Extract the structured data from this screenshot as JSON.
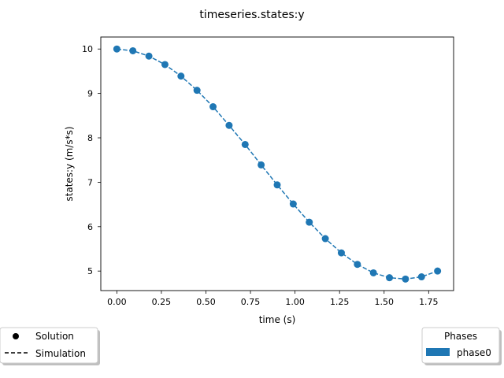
{
  "chart_data": {
    "type": "line",
    "title": "timeseries.states:y",
    "xlabel": "time (s)",
    "ylabel": "states:y (m/s*s)",
    "xlim": [
      -0.09,
      1.89
    ],
    "ylim": [
      4.56,
      10.27
    ],
    "xticks": [
      "0.00",
      "0.25",
      "0.50",
      "0.75",
      "1.00",
      "1.25",
      "1.50",
      "1.75"
    ],
    "yticks": [
      "5",
      "6",
      "7",
      "8",
      "9",
      "10"
    ],
    "grid": false,
    "color": "#1f77b4",
    "series": [
      {
        "kind": "scatter",
        "x": [
          0.0,
          0.09,
          0.18,
          0.27,
          0.36,
          0.45,
          0.54,
          0.63,
          0.72,
          0.81,
          0.9,
          0.99,
          1.08,
          1.17,
          1.26,
          1.35,
          1.44,
          1.53,
          1.62,
          1.71,
          1.8
        ],
        "y": [
          10.0,
          9.96,
          9.84,
          9.65,
          9.39,
          9.07,
          8.7,
          8.28,
          7.85,
          7.39,
          6.94,
          6.51,
          6.1,
          5.73,
          5.41,
          5.15,
          4.96,
          4.85,
          4.82,
          4.87,
          5.0
        ]
      },
      {
        "kind": "line-dashed",
        "x": [
          0.0,
          0.09,
          0.18,
          0.27,
          0.36,
          0.45,
          0.54,
          0.63,
          0.72,
          0.81,
          0.9,
          0.99,
          1.08,
          1.17,
          1.26,
          1.35,
          1.44,
          1.53,
          1.62,
          1.71,
          1.8
        ],
        "y": [
          10.0,
          9.96,
          9.84,
          9.65,
          9.39,
          9.07,
          8.7,
          8.28,
          7.85,
          7.39,
          6.94,
          6.51,
          6.1,
          5.73,
          5.41,
          5.15,
          4.96,
          4.85,
          4.82,
          4.87,
          5.0
        ]
      }
    ],
    "legend_left": {
      "placement": "bottom-left",
      "entries": [
        {
          "label": "Solution",
          "marker": "circle",
          "color": "#000000"
        },
        {
          "label": "Simulation",
          "marker": "dashed-line",
          "color": "#000000"
        }
      ]
    },
    "legend_right": {
      "placement": "bottom-right",
      "title": "Phases",
      "entries": [
        {
          "label": "phase0",
          "marker": "patch",
          "color": "#1f77b4"
        }
      ]
    }
  }
}
